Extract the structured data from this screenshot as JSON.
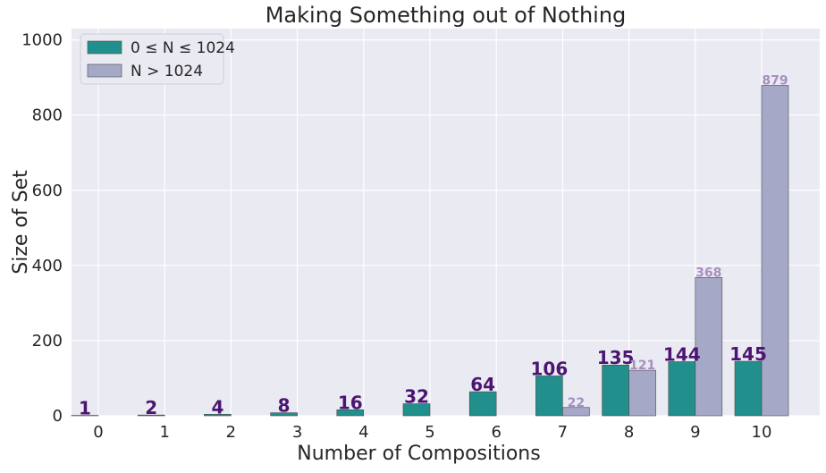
{
  "chart_data": {
    "type": "bar",
    "title": "Making Something out of Nothing",
    "xlabel": "Number of Compositions",
    "ylabel": "Size of Set",
    "categories": [
      "0",
      "1",
      "2",
      "3",
      "4",
      "5",
      "6",
      "7",
      "8",
      "9",
      "10"
    ],
    "ylim": [
      0,
      1030
    ],
    "yticks": [
      0,
      200,
      400,
      600,
      800,
      1000
    ],
    "grid": true,
    "legend_position": "top-left",
    "series": [
      {
        "name": "0 ≤ N ≤ 1024",
        "values": [
          1,
          2,
          4,
          8,
          16,
          32,
          64,
          106,
          135,
          144,
          145
        ],
        "labels": [
          "1",
          "2",
          "4",
          "8",
          "16",
          "32",
          "64",
          "106",
          "135",
          "144",
          "145"
        ],
        "color": "#21908d",
        "label_color": "#4b1571"
      },
      {
        "name": "N > 1024",
        "values": [
          0,
          0,
          0,
          0,
          0,
          0,
          0,
          22,
          121,
          368,
          879
        ],
        "labels": [
          "",
          "",
          "",
          "",
          "",
          "",
          "",
          "22",
          "121",
          "368",
          "879"
        ],
        "color": "#a6a8c8",
        "label_color": "#a78fc0"
      }
    ],
    "background_color": "#eaeaf2",
    "grid_color": "#ffffff"
  }
}
